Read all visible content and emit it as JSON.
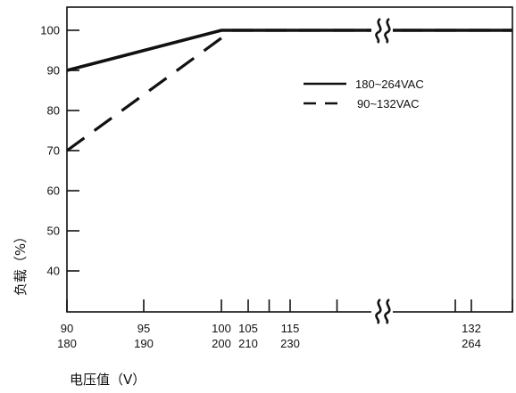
{
  "chart_data": {
    "type": "line",
    "title": "",
    "xlabel": "电压值（V）",
    "ylabel": "负载（%）",
    "ylim": [
      30,
      105
    ],
    "y_ticks": [
      40,
      50,
      60,
      70,
      80,
      90,
      100
    ],
    "x_tick_labels": [
      {
        "top": "90",
        "bottom": "180"
      },
      {
        "top": "95",
        "bottom": "190"
      },
      {
        "top": "100",
        "bottom": "200"
      },
      {
        "top": "105",
        "bottom": "210"
      },
      {
        "top": "115",
        "bottom": "230"
      },
      {
        "top": "132",
        "bottom": "264"
      }
    ],
    "axis_break": "between 115/230 and 132/264",
    "grid": false,
    "legend_position": "top-right",
    "series": [
      {
        "name": "180~264VAC",
        "style": "solid",
        "x": [
          180,
          200,
          264
        ],
        "y": [
          90,
          100,
          100
        ]
      },
      {
        "name": "90~132VAC",
        "style": "dashed",
        "x": [
          90,
          102,
          132
        ],
        "y": [
          70,
          100,
          100
        ]
      }
    ]
  }
}
